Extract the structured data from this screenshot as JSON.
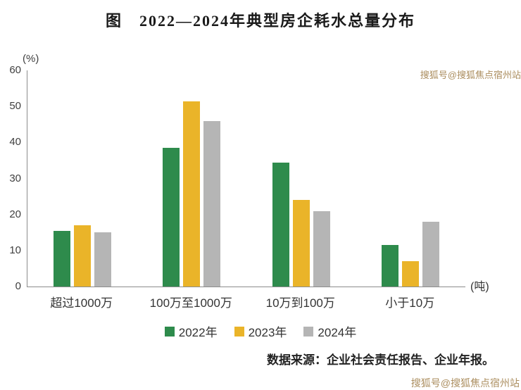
{
  "title": "图　2022—2024年典型房企耗水总量分布",
  "chart_data": {
    "type": "bar",
    "categories": [
      "超过1000万",
      "100万至1000万",
      "10万到100万",
      "小于10万"
    ],
    "series": [
      {
        "name": "2022年",
        "color": "#2e8b4c",
        "values": [
          15.5,
          38.5,
          34.5,
          11.5
        ]
      },
      {
        "name": "2023年",
        "color": "#eab429",
        "values": [
          17,
          51.5,
          24,
          7
        ]
      },
      {
        "name": "2024年",
        "color": "#b5b5b5",
        "values": [
          15,
          46,
          21,
          18
        ]
      }
    ],
    "ylabel": "(%)",
    "x_unit": "(吨)",
    "ylim": [
      0,
      60
    ],
    "yticks": [
      0,
      10,
      20,
      30,
      40,
      50,
      60
    ],
    "grid": false,
    "legend_position": "bottom"
  },
  "source": "数据来源：企业社会责任报告、企业年报。",
  "watermark": "搜狐号@搜狐焦点宿州站"
}
